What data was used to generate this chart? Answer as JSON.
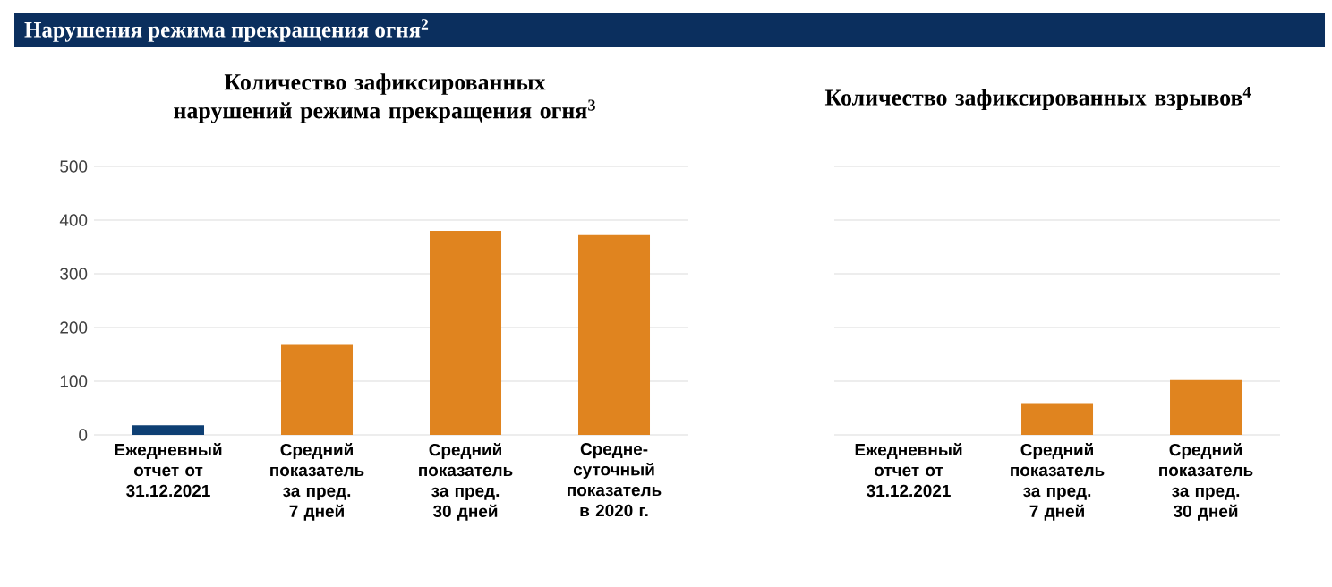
{
  "chart_data": [
    {
      "type": "bar",
      "title": "Нарушения режима прекращения огня$^{2}$",
      "subtitle": "Количество зафиксированных нарушений режима прекращения огня$^{3}$",
      "categories": [
        "Ежедневный отчет от 31.12.2021",
        "Средний показатель за пред. 7 дней",
        "Средний показатель за пред. 30 дней",
        "Средне-суточный показатель в 2020 г."
      ],
      "values": [
        18,
        169,
        380,
        372
      ],
      "colors": [
        "#0e3f73",
        "#e0841f",
        "#e0841f",
        "#e0841f"
      ],
      "ylim": [
        0,
        500
      ],
      "yticks": [
        0,
        100,
        200,
        300,
        400,
        500
      ],
      "grid": "y"
    },
    {
      "type": "bar",
      "title": "Количество зафиксированных взрывов$^{4}$",
      "categories": [
        "Ежедневный отчет от 31.12.2021",
        "Средний показатель за пред. 7 дней",
        "Средний показатель за пред. 30 дней"
      ],
      "values": [
        0,
        59,
        102
      ],
      "colors": [
        "#e0841f",
        "#e0841f",
        "#e0841f"
      ],
      "ylim": [
        0,
        500
      ],
      "yticks": [
        0,
        100,
        200,
        300,
        400,
        500
      ],
      "grid": "y",
      "tick_labels": "x"
    }
  ]
}
